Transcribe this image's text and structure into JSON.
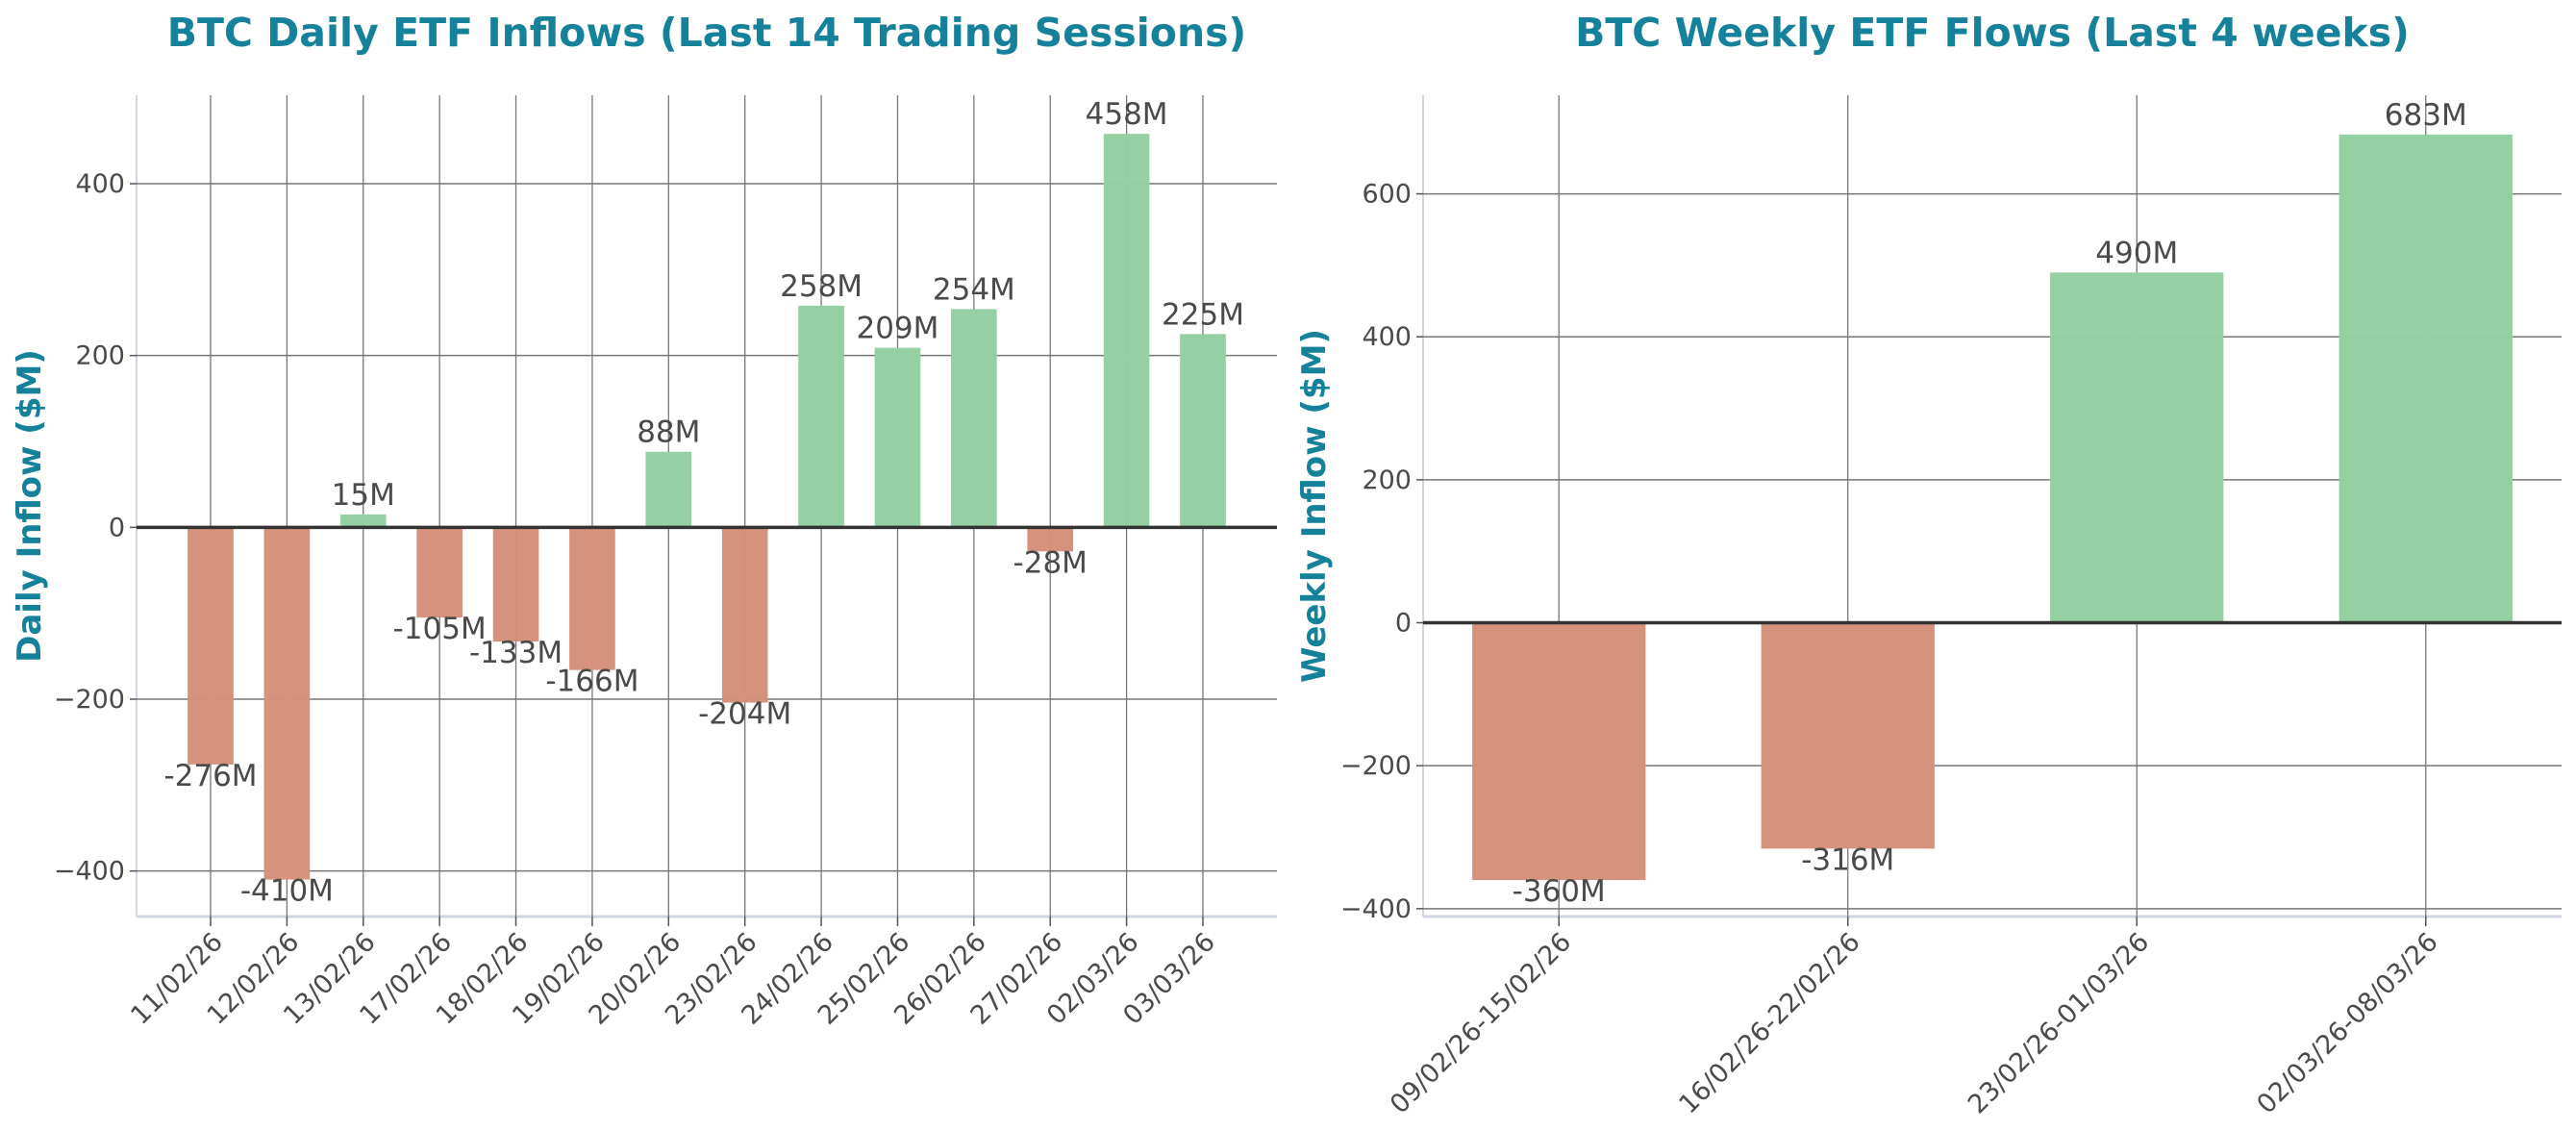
{
  "colors": {
    "positive": "#93cfa0",
    "negative": "#d4917b",
    "title": "#16819a",
    "text": "#4a4a4a",
    "grid": "#777777",
    "zero_line": "#333333"
  },
  "chart_data": [
    {
      "type": "bar",
      "title": "BTC Daily ETF Inflows (Last 14 Trading Sessions)",
      "xlabel": "",
      "ylabel": "Daily Inflow ($M)",
      "categories": [
        "11/02/26",
        "12/02/26",
        "13/02/26",
        "17/02/26",
        "18/02/26",
        "19/02/26",
        "20/02/26",
        "23/02/26",
        "24/02/26",
        "25/02/26",
        "26/02/26",
        "27/02/26",
        "02/03/26",
        "03/03/26"
      ],
      "values": [
        -276,
        -410,
        15,
        -105,
        -133,
        -166,
        88,
        -204,
        258,
        209,
        254,
        -28,
        458,
        225
      ],
      "data_labels": [
        "-276M",
        "-410M",
        "15M",
        "-105M",
        "-133M",
        "-166M",
        "88M",
        "-204M",
        "258M",
        "209M",
        "254M",
        "-28M",
        "458M",
        "225M"
      ],
      "yticks": [
        -400,
        -200,
        0,
        200,
        400
      ],
      "ytick_labels": [
        "−400",
        "−200",
        "0",
        "200",
        "400"
      ],
      "ylim": [
        -453,
        503
      ],
      "grid": true
    },
    {
      "type": "bar",
      "title": "BTC Weekly ETF Flows (Last 4 weeks)",
      "xlabel": "",
      "ylabel": "Weekly Inflow ($M)",
      "categories": [
        "09/02/26-15/02/26",
        "16/02/26-22/02/26",
        "23/02/26-01/03/26",
        "02/03/26-08/03/26"
      ],
      "values": [
        -360,
        -316,
        490,
        683
      ],
      "data_labels": [
        "-360M",
        "-316M",
        "490M",
        "683M"
      ],
      "yticks": [
        -400,
        -200,
        0,
        200,
        400,
        600
      ],
      "ytick_labels": [
        "−400",
        "−200",
        "0",
        "200",
        "400",
        "600"
      ],
      "ylim": [
        -411,
        738
      ],
      "grid": true
    }
  ]
}
